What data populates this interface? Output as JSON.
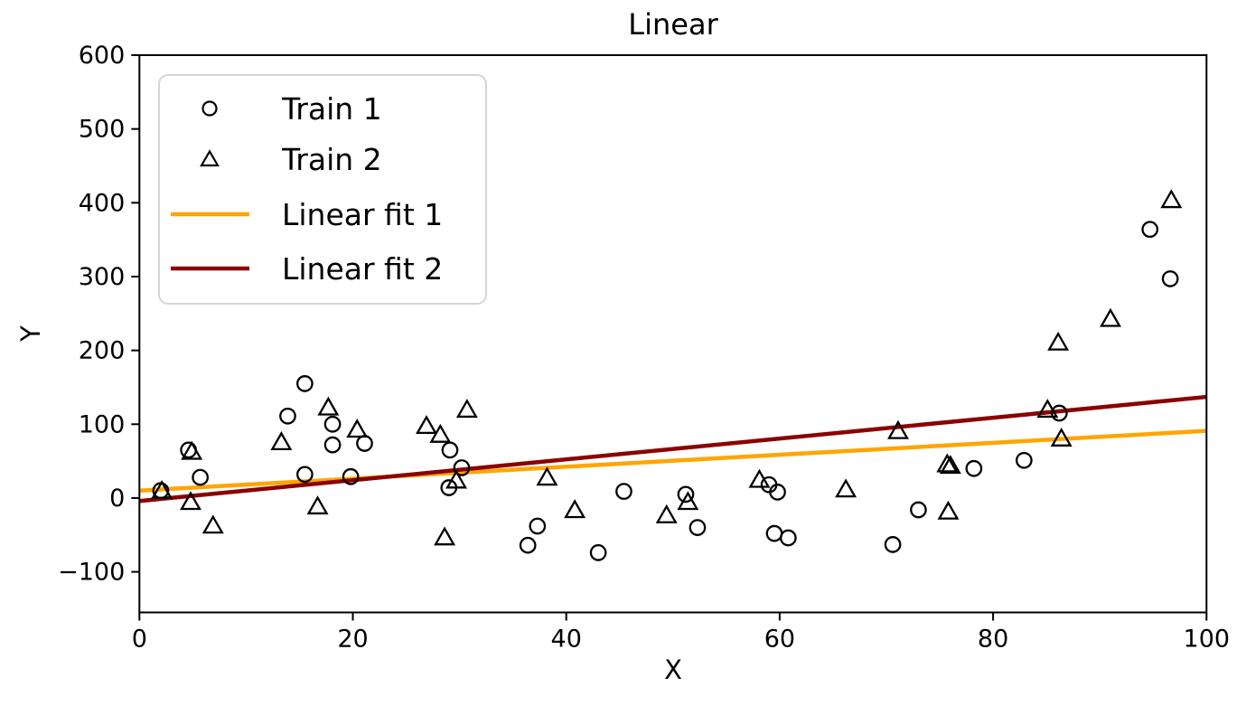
{
  "figure": {
    "title": "Linear",
    "xlabel": "X",
    "ylabel": "Y"
  },
  "chart_data": {
    "type": "scatter",
    "title": "Linear",
    "xlabel": "X",
    "ylabel": "Y",
    "xlim": [
      0,
      100
    ],
    "ylim": [
      -155,
      600
    ],
    "xticks": [
      0,
      20,
      40,
      60,
      80,
      100
    ],
    "yticks": [
      -100,
      0,
      100,
      200,
      300,
      400,
      500,
      600
    ],
    "grid": false,
    "legend": {
      "position": "upper left",
      "entries": [
        "Train 1",
        "Train 2",
        "Linear fit 1",
        "Linear fit 2"
      ]
    },
    "colors": {
      "marker": "#000000",
      "fit1": "#FFA500",
      "fit2": "#8B0000",
      "legend_border": "#D5D5D5"
    },
    "series": [
      {
        "name": "Train 1",
        "type": "scatter",
        "marker": "circle",
        "color": "#000000",
        "points": [
          [
            2.0,
            10
          ],
          [
            4.6,
            65
          ],
          [
            5.7,
            28
          ],
          [
            13.9,
            111
          ],
          [
            15.5,
            155
          ],
          [
            15.5,
            32
          ],
          [
            18.1,
            100
          ],
          [
            18.1,
            72
          ],
          [
            19.8,
            29
          ],
          [
            21.1,
            74
          ],
          [
            29.0,
            14
          ],
          [
            29.1,
            65
          ],
          [
            30.2,
            41
          ],
          [
            36.4,
            -64
          ],
          [
            37.3,
            -38
          ],
          [
            43.0,
            -74
          ],
          [
            45.4,
            9
          ],
          [
            51.2,
            5
          ],
          [
            52.3,
            -40
          ],
          [
            59.0,
            18
          ],
          [
            59.5,
            -48
          ],
          [
            59.8,
            8
          ],
          [
            60.8,
            -54
          ],
          [
            70.6,
            -63
          ],
          [
            73.0,
            -16
          ],
          [
            78.2,
            40
          ],
          [
            82.9,
            51
          ],
          [
            86.2,
            115
          ],
          [
            94.7,
            364
          ],
          [
            96.6,
            297
          ]
        ]
      },
      {
        "name": "Train 2",
        "type": "scatter",
        "marker": "triangle",
        "color": "#000000",
        "points": [
          [
            2.1,
            10
          ],
          [
            4.9,
            63
          ],
          [
            4.8,
            -5
          ],
          [
            6.9,
            -37
          ],
          [
            13.3,
            76
          ],
          [
            16.7,
            -11
          ],
          [
            17.7,
            123
          ],
          [
            20.4,
            93
          ],
          [
            26.9,
            98
          ],
          [
            28.2,
            86
          ],
          [
            28.6,
            -53
          ],
          [
            29.7,
            24
          ],
          [
            30.7,
            120
          ],
          [
            38.2,
            28
          ],
          [
            40.8,
            -16
          ],
          [
            49.4,
            -23
          ],
          [
            51.4,
            -5
          ],
          [
            58.1,
            25
          ],
          [
            66.2,
            12
          ],
          [
            71.1,
            91
          ],
          [
            75.7,
            46
          ],
          [
            76.0,
            44
          ],
          [
            75.8,
            -18
          ],
          [
            85.1,
            120
          ],
          [
            86.1,
            211
          ],
          [
            86.4,
            81
          ],
          [
            91.0,
            243
          ],
          [
            96.7,
            404
          ]
        ]
      },
      {
        "name": "Linear fit 1",
        "type": "line",
        "color": "#FFA500",
        "points": [
          [
            0,
            10
          ],
          [
            100,
            91
          ]
        ]
      },
      {
        "name": "Linear fit 2",
        "type": "line",
        "color": "#8B0000",
        "points": [
          [
            0,
            -4
          ],
          [
            100,
            137
          ]
        ]
      }
    ]
  }
}
